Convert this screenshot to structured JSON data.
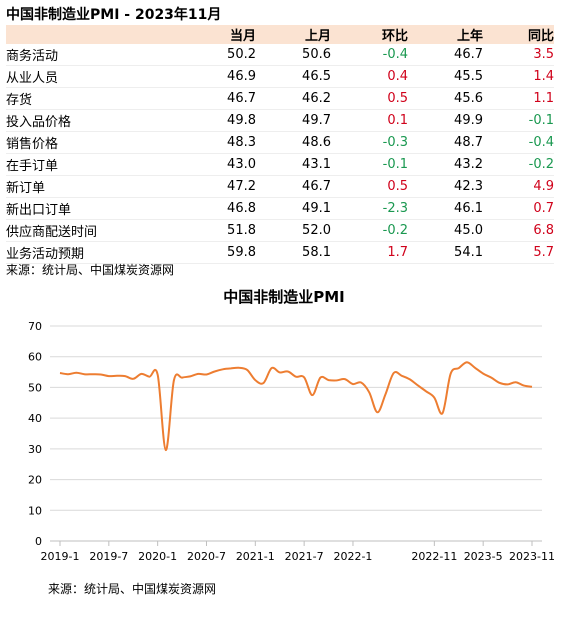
{
  "table": {
    "title": "中国非制造业PMI - 2023年11月",
    "headers": [
      "",
      "当月",
      "上月",
      "环比",
      "上年",
      "同比"
    ],
    "rows": [
      {
        "name": "商务活动",
        "cur": "50.2",
        "prev": "50.6",
        "mom": "-0.4",
        "last_year": "46.7",
        "yoy": "3.5"
      },
      {
        "name": "从业人员",
        "cur": "46.9",
        "prev": "46.5",
        "mom": "0.4",
        "last_year": "45.5",
        "yoy": "1.4"
      },
      {
        "name": "存货",
        "cur": "46.7",
        "prev": "46.2",
        "mom": "0.5",
        "last_year": "45.6",
        "yoy": "1.1"
      },
      {
        "name": "投入品价格",
        "cur": "49.8",
        "prev": "49.7",
        "mom": "0.1",
        "last_year": "49.9",
        "yoy": "-0.1"
      },
      {
        "name": "销售价格",
        "cur": "48.3",
        "prev": "48.6",
        "mom": "-0.3",
        "last_year": "48.7",
        "yoy": "-0.4"
      },
      {
        "name": "在手订单",
        "cur": "43.0",
        "prev": "43.1",
        "mom": "-0.1",
        "last_year": "43.2",
        "yoy": "-0.2"
      },
      {
        "name": "新订单",
        "cur": "47.2",
        "prev": "46.7",
        "mom": "0.5",
        "last_year": "42.3",
        "yoy": "4.9"
      },
      {
        "name": "新出口订单",
        "cur": "46.8",
        "prev": "49.1",
        "mom": "-2.3",
        "last_year": "46.1",
        "yoy": "0.7"
      },
      {
        "name": "供应商配送时间",
        "cur": "51.8",
        "prev": "52.0",
        "mom": "-0.2",
        "last_year": "45.0",
        "yoy": "6.8"
      },
      {
        "name": "业务活动预期",
        "cur": "59.8",
        "prev": "58.1",
        "mom": "1.7",
        "last_year": "54.1",
        "yoy": "5.7"
      }
    ],
    "source": "来源：统计局、中国煤炭资源网"
  },
  "colors": {
    "positive": "#d0021b",
    "negative": "#1a9850",
    "line": "#ed7d31",
    "header_bg": "#fbe3d2"
  },
  "chart_data": {
    "type": "line",
    "title": "中国非制造业PMI",
    "xlabel": "",
    "ylabel": "",
    "ylim": [
      0,
      70
    ],
    "yticks": [
      0,
      10,
      20,
      30,
      40,
      50,
      60,
      70
    ],
    "grid": true,
    "xtick_labels": [
      "2019-1",
      "2019-7",
      "2020-1",
      "2020-7",
      "2021-1",
      "2021-7",
      "2022-1",
      "2022-11",
      "2023-5",
      "2023-11"
    ],
    "x": [
      "2019-01",
      "2019-02",
      "2019-03",
      "2019-04",
      "2019-05",
      "2019-06",
      "2019-07",
      "2019-08",
      "2019-09",
      "2019-10",
      "2019-11",
      "2019-12",
      "2020-01",
      "2020-02",
      "2020-03",
      "2020-04",
      "2020-05",
      "2020-06",
      "2020-07",
      "2020-08",
      "2020-09",
      "2020-10",
      "2020-11",
      "2020-12",
      "2021-01",
      "2021-02",
      "2021-03",
      "2021-04",
      "2021-05",
      "2021-06",
      "2021-07",
      "2021-08",
      "2021-09",
      "2021-10",
      "2021-11",
      "2021-12",
      "2022-01",
      "2022-02",
      "2022-03",
      "2022-04",
      "2022-05",
      "2022-06",
      "2022-07",
      "2022-08",
      "2022-09",
      "2022-10",
      "2022-11",
      "2022-12",
      "2023-01",
      "2023-02",
      "2023-03",
      "2023-04",
      "2023-05",
      "2023-06",
      "2023-07",
      "2023-08",
      "2023-09",
      "2023-10",
      "2023-11"
    ],
    "series": [
      {
        "values": [
          54.7,
          54.3,
          54.8,
          54.3,
          54.3,
          54.2,
          53.7,
          53.8,
          53.7,
          52.8,
          54.4,
          53.5,
          54.1,
          29.6,
          52.3,
          53.2,
          53.6,
          54.4,
          54.2,
          55.2,
          55.9,
          56.2,
          56.4,
          55.7,
          52.4,
          51.4,
          56.3,
          54.9,
          55.2,
          53.5,
          53.3,
          47.5,
          53.2,
          52.4,
          52.3,
          52.7,
          51.1,
          51.6,
          48.4,
          41.9,
          47.8,
          54.7,
          53.8,
          52.6,
          50.6,
          48.7,
          46.7,
          41.6,
          54.4,
          56.3,
          58.2,
          56.4,
          54.5,
          53.2,
          51.5,
          51.0,
          51.7,
          50.6,
          50.2
        ]
      }
    ],
    "source": "来源：统计局、中国煤炭资源网"
  }
}
